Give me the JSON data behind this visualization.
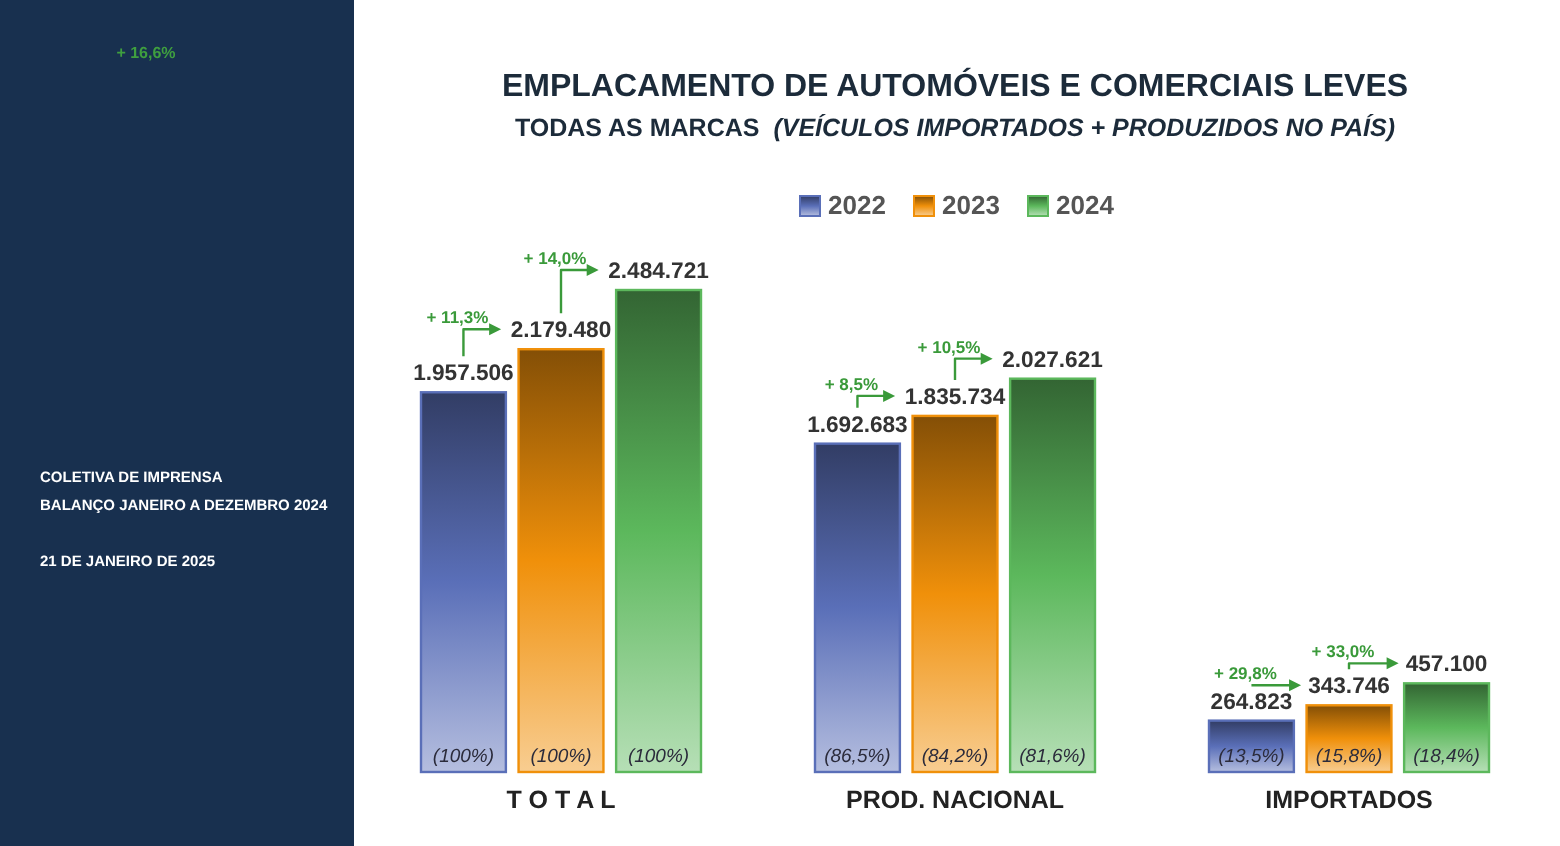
{
  "chart_data": {
    "type": "bar",
    "title": "EMPLACAMENTO DE AUTOMÓVEIS E COMERCIAIS LEVES",
    "subtitle": "TODAS AS MARCAS (VEÍCULOS IMPORTADOS + PRODUZIDOS NO PAÍS)",
    "categories": [
      "T O T A L",
      "PROD. NACIONAL",
      "IMPORTADOS"
    ],
    "series": [
      {
        "name": "2022",
        "color": "#5a6fb8",
        "values": [
          1957506,
          1692683,
          264823
        ],
        "value_labels": [
          "1.957.506",
          "1.692.683",
          "264.823"
        ]
      },
      {
        "name": "2023",
        "color": "#f0900a",
        "values": [
          2179480,
          1835734,
          343746
        ],
        "value_labels": [
          "2.179.480",
          "1.835.734",
          "343.746"
        ]
      },
      {
        "name": "2024",
        "color": "#5cb85c",
        "values": [
          2484721,
          2027621,
          457100
        ],
        "value_labels": [
          "2.484.721",
          "2.027.621",
          "457.100"
        ]
      }
    ],
    "legend": "top",
    "annotations": [
      "(100%)",
      "(100%)",
      "(100%)",
      "(86,5%)",
      "(84,2%)",
      "(81,6%)",
      "(13,5%)",
      "(15,8%)",
      "(18,4%)",
      "+ 11,3%",
      "+ 14,0%",
      "+ 8,5%",
      "+ 10,5%",
      "+ 29,8%",
      "+ 33,0%",
      "+ 16,6%",
      "COLETIVA DE IMPRENSA",
      "BALANÇO JANEIRO A DEZEMBRO 2024",
      "21 DE JANEIRO DE 2025"
    ]
  }
}
